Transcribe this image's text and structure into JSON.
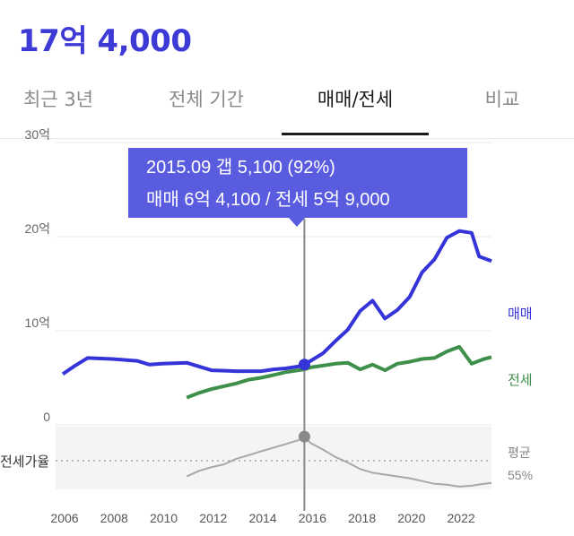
{
  "header": {
    "price": "17억 4,000"
  },
  "tabs": [
    {
      "label": "최근 3년"
    },
    {
      "label": "전체 기간"
    },
    {
      "label": "매매/전세"
    },
    {
      "label": "비교"
    }
  ],
  "tooltip": {
    "line1": "2015.09  갭 5,100 (92%)",
    "line2": "매매 6억 4,100 / 전세 5억 9,000"
  },
  "colors": {
    "accent": "#3d3ad6",
    "sale": "#3534d8",
    "jeonse": "#3d8f4a",
    "ratio": "#a8a8a8",
    "tooltip": "#5a5ce0"
  },
  "chart_data": {
    "type": "line",
    "x_ticks": [
      "2006",
      "2008",
      "2010",
      "2012",
      "2014",
      "2016",
      "2018",
      "2020",
      "2022"
    ],
    "y_ticks": [
      "30억",
      "20억",
      "10억",
      "0"
    ],
    "ylim": [
      0,
      30
    ],
    "y_unit": "억",
    "series": [
      {
        "name": "매매",
        "x": [
          2006.0,
          2006.5,
          2007.0,
          2008.0,
          2009.0,
          2009.5,
          2010.0,
          2011.0,
          2011.5,
          2012.0,
          2013.0,
          2014.0,
          2014.5,
          2015.0,
          2015.5,
          2015.75,
          2016.0,
          2016.5,
          2017.0,
          2017.5,
          2018.0,
          2018.5,
          2019.0,
          2019.5,
          2020.0,
          2020.5,
          2021.0,
          2021.5,
          2022.0,
          2022.5,
          2022.8,
          2023.3
        ],
        "values": [
          5.4,
          6.3,
          7.1,
          7.0,
          6.8,
          6.4,
          6.5,
          6.6,
          6.2,
          5.8,
          5.7,
          5.7,
          5.9,
          6.0,
          6.2,
          6.41,
          6.8,
          7.6,
          8.9,
          10.1,
          12.1,
          13.2,
          11.3,
          12.2,
          13.6,
          16.2,
          17.6,
          19.9,
          20.6,
          20.4,
          17.9,
          17.4
        ]
      },
      {
        "name": "전세",
        "x": [
          2011.0,
          2011.5,
          2012.0,
          2012.5,
          2013.0,
          2013.5,
          2014.0,
          2014.5,
          2015.0,
          2015.5,
          2015.75,
          2016.0,
          2016.5,
          2017.0,
          2017.5,
          2018.0,
          2018.5,
          2019.0,
          2019.5,
          2020.0,
          2020.5,
          2021.0,
          2021.5,
          2022.0,
          2022.5,
          2023.0,
          2023.3
        ],
        "values": [
          2.9,
          3.4,
          3.8,
          4.1,
          4.4,
          4.8,
          5.0,
          5.3,
          5.6,
          5.8,
          5.9,
          6.1,
          6.3,
          6.5,
          6.6,
          5.9,
          6.4,
          5.8,
          6.5,
          6.7,
          7.0,
          7.1,
          7.8,
          8.3,
          6.5,
          7.0,
          7.2
        ]
      },
      {
        "name": "전세가율",
        "x": [
          2011.0,
          2011.5,
          2012.0,
          2012.5,
          2013.0,
          2013.5,
          2014.0,
          2014.5,
          2015.0,
          2015.5,
          2015.75,
          2016.0,
          2016.5,
          2017.0,
          2017.5,
          2018.0,
          2018.5,
          2019.0,
          2019.5,
          2020.0,
          2020.5,
          2021.0,
          2021.5,
          2022.0,
          2022.5,
          2023.0,
          2023.3
        ],
        "values": [
          49,
          55,
          59,
          62,
          68,
          72,
          76,
          80,
          84,
          88,
          92,
          85,
          78,
          70,
          64,
          57,
          53,
          51,
          49,
          47,
          44,
          41,
          40,
          38,
          39,
          41,
          42
        ]
      }
    ],
    "legend": [
      "매매",
      "전세"
    ],
    "ratio_label": "전세가율",
    "average_label": "평균",
    "average_value": "55%",
    "highlight": {
      "x": 2015.75,
      "label": "2015.09"
    }
  }
}
